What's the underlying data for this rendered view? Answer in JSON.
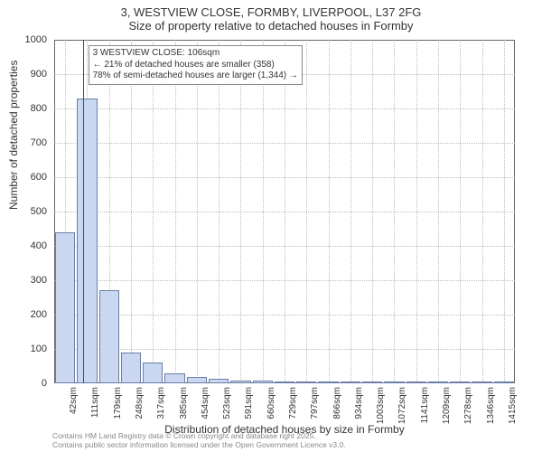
{
  "title_main": "3, WESTVIEW CLOSE, FORMBY, LIVERPOOL, L37 2FG",
  "title_sub": "Size of property relative to detached houses in Formby",
  "ylabel": "Number of detached properties",
  "xlabel": "Distribution of detached houses by size in Formby",
  "footer_line1": "Contains HM Land Registry data © Crown copyright and database right 2025.",
  "footer_line2": "Contains public sector information licensed under the Open Government Licence v3.0.",
  "chart": {
    "type": "histogram",
    "ylim": [
      0,
      1000
    ],
    "ytick_step": 100,
    "xtick_labels": [
      "42sqm",
      "111sqm",
      "179sqm",
      "248sqm",
      "317sqm",
      "385sqm",
      "454sqm",
      "523sqm",
      "591sqm",
      "660sqm",
      "729sqm",
      "797sqm",
      "866sqm",
      "934sqm",
      "1003sqm",
      "1072sqm",
      "1141sqm",
      "1209sqm",
      "1278sqm",
      "1346sqm",
      "1415sqm"
    ],
    "n_bins": 21,
    "values": [
      440,
      830,
      270,
      90,
      60,
      30,
      18,
      12,
      8,
      8,
      6,
      5,
      4,
      3,
      2,
      2,
      2,
      1,
      1,
      1,
      1
    ],
    "bar_fill": "#c9d7f0",
    "bar_stroke": "#6a7ea8",
    "background_color": "#ffffff",
    "grid_color": "#bdbdbd",
    "border_color": "#666666",
    "marker": {
      "bin_index": 1,
      "color": "#ff0000",
      "annot_title": "3 WESTVIEW CLOSE: 106sqm",
      "annot_line1": "← 21% of detached houses are smaller (358)",
      "annot_line2": "78% of semi-detached houses are larger (1,344) →"
    }
  }
}
